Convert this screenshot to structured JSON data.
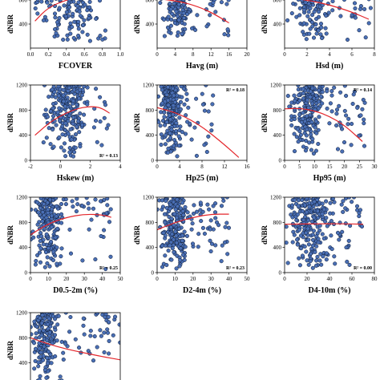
{
  "chart_data": [
    {
      "type": "scatter",
      "xlabel": "FCOVER",
      "ylabel": "dNBR",
      "xlim": [
        0.0,
        1.0
      ],
      "ylim": [
        0,
        1200
      ],
      "xticks": [
        "0.0",
        "0.2",
        "0.4",
        "0.6",
        "0.8",
        "1.0"
      ],
      "yticks": [
        "400",
        "800",
        "1200"
      ],
      "r2_label": "",
      "fit": {
        "x": [
          0.05,
          0.2,
          0.4,
          0.55,
          0.7
        ],
        "y": [
          450,
          680,
          800,
          860,
          880
        ]
      },
      "cloud": {
        "x_range": [
          0.05,
          0.85
        ],
        "x_center": 0.45,
        "y_range": [
          100,
          1200
        ],
        "n": 220
      }
    },
    {
      "type": "scatter",
      "xlabel": "Havg (m)",
      "ylabel": "dNBR",
      "xlim": [
        0,
        20
      ],
      "ylim": [
        0,
        1200
      ],
      "xticks": [
        "0",
        "4",
        "8",
        "12",
        "16",
        "20"
      ],
      "yticks": [
        "400",
        "800",
        "1200"
      ],
      "r2_label": "",
      "fit": {
        "x": [
          0,
          4,
          8,
          12,
          16
        ],
        "y": [
          820,
          790,
          720,
          600,
          420
        ]
      },
      "cloud": {
        "x_range": [
          0.5,
          16
        ],
        "x_center": 5,
        "y_range": [
          150,
          1200
        ],
        "n": 220
      }
    },
    {
      "type": "scatter",
      "xlabel": "Hsd (m)",
      "ylabel": "dNBR",
      "xlim": [
        0,
        8
      ],
      "ylim": [
        0,
        1200
      ],
      "xticks": [
        "0",
        "2",
        "4",
        "6",
        "8"
      ],
      "yticks": [
        "400",
        "800",
        "1200"
      ],
      "r2_label": "",
      "fit": {
        "x": [
          0,
          2,
          4,
          6,
          7.5
        ],
        "y": [
          840,
          800,
          720,
          600,
          480
        ]
      },
      "cloud": {
        "x_range": [
          0.2,
          7.8
        ],
        "x_center": 2.5,
        "y_range": [
          100,
          1200
        ],
        "n": 220
      }
    },
    {
      "type": "scatter",
      "xlabel": "Hskew (m)",
      "ylabel": "dNBR",
      "xlim": [
        -2,
        4
      ],
      "ylim": [
        0,
        1200
      ],
      "xticks": [
        "-2",
        "0",
        "2",
        "4"
      ],
      "yticks": [
        "0",
        "400",
        "800",
        "1200"
      ],
      "r2_label": "R² = 0.13",
      "fit": {
        "x": [
          -1.7,
          -0.5,
          1,
          2,
          2.7,
          3.3
        ],
        "y": [
          400,
          650,
          820,
          860,
          840,
          750
        ]
      },
      "cloud": {
        "x_range": [
          -1.2,
          3.2
        ],
        "x_center": 0.5,
        "y_range": [
          50,
          1200
        ],
        "n": 240
      }
    },
    {
      "type": "scatter",
      "xlabel": "Hp25 (m)",
      "ylabel": "dNBR",
      "xlim": [
        0,
        16
      ],
      "ylim": [
        0,
        1200
      ],
      "xticks": [
        "0",
        "4",
        "8",
        "12",
        "16"
      ],
      "yticks": [
        "0",
        "400",
        "800",
        "1200"
      ],
      "r2_label": "R² = 0.18",
      "fit": {
        "x": [
          0,
          4,
          8,
          12,
          14.5
        ],
        "y": [
          840,
          740,
          540,
          250,
          50
        ]
      },
      "cloud": {
        "x_range": [
          0,
          10
        ],
        "x_center": 2.5,
        "y_range": [
          50,
          1200
        ],
        "n": 240
      }
    },
    {
      "type": "scatter",
      "xlabel": "Hp95 (m)",
      "ylabel": "dNBR",
      "xlim": [
        0,
        30
      ],
      "ylim": [
        0,
        1200
      ],
      "xticks": [
        "0",
        "5",
        "10",
        "15",
        "20",
        "25",
        "30"
      ],
      "yticks": [
        "0",
        "400",
        "800",
        "1200"
      ],
      "r2_label": "R² = 0.14",
      "fit": {
        "x": [
          0,
          5,
          10,
          15,
          20,
          26
        ],
        "y": [
          820,
          830,
          790,
          700,
          560,
          300
        ]
      },
      "cloud": {
        "x_range": [
          1,
          27
        ],
        "x_center": 8,
        "y_range": [
          50,
          1200
        ],
        "n": 240
      }
    },
    {
      "type": "scatter",
      "xlabel": "D0.5-2m (%)",
      "ylabel": "dNBR",
      "xlim": [
        0,
        50
      ],
      "ylim": [
        0,
        1200
      ],
      "xticks": [
        "0",
        "10",
        "20",
        "30",
        "40",
        "50"
      ],
      "yticks": [
        "0",
        "400",
        "800",
        "1200"
      ],
      "r2_label": "R² = 0.25",
      "fit": {
        "x": [
          0,
          10,
          20,
          30,
          40,
          45
        ],
        "y": [
          600,
          780,
          880,
          930,
          920,
          880
        ]
      },
      "cloud": {
        "x_range": [
          0,
          45
        ],
        "x_center": 10,
        "y_range": [
          50,
          1200
        ],
        "n": 240
      }
    },
    {
      "type": "scatter",
      "xlabel": "D2-4m (%)",
      "ylabel": "dNBR",
      "xlim": [
        0,
        50
      ],
      "ylim": [
        0,
        1200
      ],
      "xticks": [
        "0",
        "10",
        "20",
        "30",
        "40",
        "50"
      ],
      "yticks": [
        "0",
        "400",
        "800",
        "1200"
      ],
      "r2_label": "R² = 0.23",
      "fit": {
        "x": [
          0,
          10,
          20,
          30,
          40
        ],
        "y": [
          680,
          800,
          880,
          930,
          930
        ]
      },
      "cloud": {
        "x_range": [
          0,
          40
        ],
        "x_center": 10,
        "y_range": [
          50,
          1200
        ],
        "n": 240
      }
    },
    {
      "type": "scatter",
      "xlabel": "D4-10m (%)",
      "ylabel": "dNBR",
      "xlim": [
        0,
        80
      ],
      "ylim": [
        0,
        1200
      ],
      "xticks": [
        "0",
        "20",
        "40",
        "60",
        "80"
      ],
      "yticks": [
        "0",
        "400",
        "800",
        "1200"
      ],
      "r2_label": "R² = 0.00",
      "fit": {
        "x": [
          0,
          20,
          40,
          60,
          70
        ],
        "y": [
          770,
          775,
          778,
          775,
          770
        ]
      },
      "cloud": {
        "x_range": [
          0,
          70
        ],
        "x_center": 25,
        "y_range": [
          50,
          1200
        ],
        "n": 260
      }
    },
    {
      "type": "scatter",
      "xlabel": "",
      "ylabel": "dNBR",
      "xlim": [
        0,
        50
      ],
      "ylim": [
        0,
        1200
      ],
      "xticks": [],
      "yticks": [
        "400",
        "800",
        "1200"
      ],
      "r2_label": "",
      "fit": {
        "x": [
          0,
          10,
          20,
          30,
          40,
          50
        ],
        "y": [
          800,
          700,
          620,
          560,
          500,
          450
        ]
      },
      "cloud": {
        "x_range": [
          0,
          50
        ],
        "x_center": 8,
        "y_range": [
          100,
          1200
        ],
        "n": 220
      }
    }
  ]
}
